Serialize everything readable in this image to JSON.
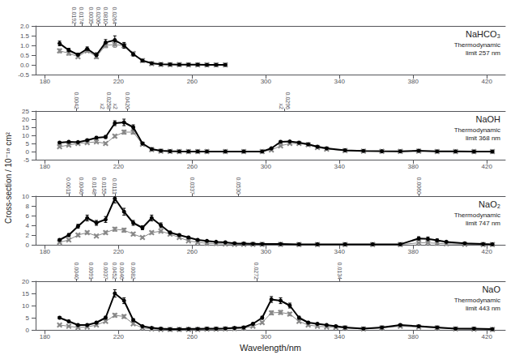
{
  "chart_data": [
    {
      "type": "line",
      "title": "NaHCO₃",
      "annotations": [
        "Thermodynamic\nlimit 257 nm"
      ],
      "ylabel": "Cross-section / 10⁻¹⁸ cm²",
      "x": [
        188,
        193,
        198,
        203,
        208,
        213,
        218,
        223,
        228,
        233,
        238,
        243,
        248,
        253,
        258,
        263,
        268,
        273,
        278
      ],
      "xlim": [
        175,
        430
      ],
      "xticks": [
        180,
        220,
        260,
        300,
        340,
        380,
        420
      ],
      "x2lim": [
        175,
        430
      ],
      "x2ticks": [
        {
          "value": 196,
          "label": "0.0192"
        },
        {
          "value": 200,
          "label": "0.0174"
        },
        {
          "value": 205,
          "label": "0.0035"
        },
        {
          "value": 209,
          "label": "0.0206"
        },
        {
          "value": 213,
          "label": "0.0810"
        },
        {
          "value": 218,
          "label": "0.0264"
        }
      ],
      "ylim": [
        -0.5,
        2.0
      ],
      "yticks": [
        -0.5,
        {
          "value": 0,
          "label": "0.0"
        },
        0.5,
        {
          "value": 1.0,
          "label": "1.0"
        },
        1.5,
        {
          "value": 2.0,
          "label": "2.0"
        }
      ],
      "grid": false,
      "series": [
        {
          "color": "#888888",
          "marker": "x",
          "line_style": "solid",
          "values": [
            0.72,
            0.6,
            0.42,
            0.72,
            0.42,
            1.0,
            1.05,
            0.98,
            0.58,
            0.22,
            0.06,
            0.02,
            0.01,
            0.01,
            0.0,
            0.0,
            0.0,
            0.0,
            0.0
          ],
          "errors": [
            0.1,
            0.1,
            0.07,
            0.08,
            0.1,
            0.12,
            0.15,
            0.12,
            0.08,
            0.04,
            0.02,
            0.01,
            0.01,
            0.01,
            0.01,
            0.01,
            0.01,
            0.01,
            0.01
          ]
        },
        {
          "color": "black",
          "marker": "circle",
          "line_style": "solid",
          "values": [
            1.1,
            0.75,
            0.52,
            0.82,
            0.5,
            1.15,
            1.27,
            1.0,
            0.55,
            0.22,
            0.08,
            0.03,
            0.02,
            0.01,
            0.01,
            0.01,
            0.0,
            0.0,
            0.0
          ],
          "errors": [
            0.12,
            0.1,
            0.08,
            0.1,
            0.12,
            0.15,
            0.22,
            0.15,
            0.1,
            0.05,
            0.03,
            0.02,
            0.01,
            0.01,
            0.01,
            0.01,
            0.01,
            0.01,
            0.01
          ]
        }
      ]
    },
    {
      "type": "line",
      "title": "NaOH",
      "annotations": [
        "Thermodynamic\nlimit 368 nm"
      ],
      "x": [
        188,
        193,
        198,
        203,
        208,
        213,
        218,
        223,
        228,
        233,
        238,
        243,
        248,
        253,
        258,
        263,
        268,
        278,
        288,
        298,
        303,
        308,
        313,
        318,
        323,
        328,
        333,
        343,
        353,
        363,
        373,
        383,
        393,
        403,
        413,
        423
      ],
      "xlim": [
        175,
        430
      ],
      "xticks": [
        180,
        220,
        260,
        300,
        340,
        380,
        420
      ],
      "x2lim": [
        175,
        430
      ],
      "x2ticks": [
        {
          "value": 197,
          "label": "0.0042"
        },
        {
          "value": 215,
          "label": "x2\n0.0258\nx2"
        },
        {
          "value": 225,
          "label": "0.0420"
        },
        {
          "value": 310,
          "label": "0.0296\nx2"
        }
      ],
      "ylim": [
        -5,
        25
      ],
      "yticks": [
        -5,
        0,
        5,
        10,
        15,
        20,
        25
      ],
      "grid": false,
      "series": [
        {
          "color": "#888888",
          "marker": "x",
          "line_style": "solid",
          "values": [
            3.0,
            4.0,
            5.0,
            5.5,
            6.0,
            5.0,
            9.5,
            12.0,
            12.0,
            4.5,
            1.2,
            0.3,
            0.1,
            0.05,
            0.05,
            0.05,
            0.05,
            0.05,
            0.05,
            0.05,
            1.0,
            3.5,
            5.0,
            5.0,
            4.2,
            2.5,
            1.5,
            0.6,
            0.3,
            0.15,
            0.1,
            0.3,
            0.05,
            0.05,
            0.0,
            0.0
          ],
          "errors": [
            0.4,
            0.4,
            0.5,
            0.5,
            0.6,
            0.6,
            0.9,
            1.2,
            1.2,
            0.5,
            0.2,
            0.1,
            0.05,
            0.05,
            0.05,
            0.05,
            0.05,
            0.05,
            0.05,
            0.05,
            0.2,
            0.4,
            0.5,
            0.5,
            0.4,
            0.3,
            0.2,
            0.1,
            0.1,
            0.1,
            0.1,
            0.1,
            0.05,
            0.05,
            0.05,
            0.05
          ]
        },
        {
          "color": "black",
          "marker": "circle",
          "line_style": "solid",
          "values": [
            5.5,
            6.0,
            5.8,
            7.0,
            8.5,
            9.0,
            17.5,
            18.0,
            15.0,
            5.0,
            1.5,
            0.5,
            0.2,
            0.1,
            0.05,
            0.05,
            0.05,
            0.05,
            0.05,
            0.05,
            2.0,
            6.0,
            6.2,
            5.5,
            4.5,
            3.0,
            2.0,
            0.8,
            0.4,
            0.2,
            0.15,
            0.5,
            0.1,
            0.1,
            0.0,
            0.0
          ],
          "errors": [
            0.5,
            0.5,
            0.5,
            0.6,
            0.8,
            0.9,
            1.5,
            2.0,
            1.5,
            0.8,
            0.3,
            0.1,
            0.05,
            0.05,
            0.05,
            0.05,
            0.05,
            0.05,
            0.05,
            0.05,
            0.3,
            0.6,
            0.6,
            0.5,
            0.5,
            0.4,
            0.2,
            0.1,
            0.1,
            0.1,
            0.1,
            0.1,
            0.1,
            0.1,
            0.05,
            0.05
          ]
        }
      ]
    },
    {
      "type": "line",
      "title": "NaO₂",
      "annotations": [
        "Thermodynamic\nlimit 747 nm"
      ],
      "x": [
        188,
        193,
        198,
        203,
        208,
        213,
        218,
        223,
        228,
        233,
        238,
        243,
        248,
        253,
        258,
        263,
        268,
        273,
        278,
        283,
        288,
        293,
        298,
        308,
        318,
        328,
        343,
        358,
        373,
        383,
        388,
        393,
        398,
        408,
        418,
        423
      ],
      "xlim": [
        175,
        430
      ],
      "xticks": [
        180,
        220,
        260,
        300,
        340,
        380,
        420
      ],
      "x2lim": [
        175,
        430
      ],
      "x2ticks": [
        {
          "value": 193,
          "label": "0.0011"
        },
        {
          "value": 200,
          "label": "0.0046"
        },
        {
          "value": 207,
          "label": "0.0148"
        },
        {
          "value": 212,
          "label": "0.0155"
        },
        {
          "value": 218,
          "label": "0.0111"
        },
        {
          "value": 260,
          "label": "0.0337"
        },
        {
          "value": 285,
          "label": "0.0530"
        },
        {
          "value": 383,
          "label": "0.0060"
        }
      ],
      "ylim": [
        0,
        10
      ],
      "yticks": [
        0,
        2,
        4,
        6,
        8,
        10
      ],
      "grid": false,
      "series": [
        {
          "color": "#888888",
          "marker": "x",
          "line_style": "solid",
          "values": [
            0.5,
            1.0,
            2.0,
            2.5,
            1.8,
            2.5,
            3.2,
            3.0,
            2.2,
            1.5,
            2.5,
            2.8,
            2.2,
            1.5,
            0.8,
            0.5,
            0.3,
            0.25,
            0.15,
            0.1,
            0.1,
            0.08,
            0.08,
            0.08,
            0.05,
            0.05,
            0.05,
            0.05,
            0.05,
            0.4,
            0.4,
            0.3,
            0.2,
            0.1,
            0.05,
            0.05
          ],
          "errors": [
            0.1,
            0.2,
            0.3,
            0.3,
            0.2,
            0.3,
            0.4,
            0.4,
            0.3,
            0.2,
            0.3,
            0.3,
            0.3,
            0.2,
            0.1,
            0.1,
            0.05,
            0.05,
            0.05,
            0.05,
            0.05,
            0.05,
            0.05,
            0.05,
            0.05,
            0.05,
            0.05,
            0.05,
            0.05,
            0.1,
            0.1,
            0.1,
            0.1,
            0.05,
            0.05,
            0.05
          ]
        },
        {
          "color": "black",
          "marker": "circle",
          "line_style": "solid",
          "values": [
            1.0,
            2.0,
            3.8,
            5.5,
            4.5,
            5.2,
            9.5,
            6.8,
            4.5,
            3.5,
            5.5,
            4.0,
            2.5,
            2.0,
            1.5,
            1.0,
            0.8,
            0.6,
            0.5,
            0.3,
            0.25,
            0.2,
            0.15,
            0.15,
            0.1,
            0.1,
            0.1,
            0.1,
            0.1,
            1.3,
            1.2,
            0.9,
            0.6,
            0.3,
            0.15,
            0.1
          ],
          "errors": [
            0.2,
            0.3,
            0.4,
            0.6,
            0.5,
            0.6,
            0.9,
            0.7,
            0.5,
            0.4,
            0.6,
            0.5,
            0.3,
            0.2,
            0.2,
            0.15,
            0.1,
            0.1,
            0.1,
            0.1,
            0.05,
            0.05,
            0.05,
            0.05,
            0.05,
            0.05,
            0.05,
            0.05,
            0.05,
            0.35,
            0.4,
            0.3,
            0.2,
            0.1,
            0.1,
            0.05
          ]
        }
      ]
    },
    {
      "type": "line",
      "title": "NaO",
      "annotations": [
        "Thermodynamic\nlimit 443 nm"
      ],
      "xlabel": "Wavelength/nm",
      "x": [
        188,
        193,
        198,
        203,
        208,
        213,
        218,
        223,
        228,
        233,
        238,
        243,
        248,
        253,
        258,
        263,
        268,
        273,
        278,
        283,
        288,
        293,
        298,
        303,
        308,
        313,
        318,
        323,
        328,
        333,
        338,
        343,
        353,
        363,
        373,
        383,
        393,
        403,
        413,
        423
      ],
      "xlim": [
        175,
        430
      ],
      "xticks": [
        180,
        220,
        260,
        300,
        340,
        380,
        420
      ],
      "x2lim": [
        175,
        430
      ],
      "x2ticks": [
        {
          "value": 197,
          "label": "0.0040"
        },
        {
          "value": 205,
          "label": "0.0091"
        },
        {
          "value": 213,
          "label": "0.0037"
        },
        {
          "value": 218,
          "label": "0.0452"
        },
        {
          "value": 222,
          "label": "0.0046"
        },
        {
          "value": 228,
          "label": "0.0082"
        },
        {
          "value": 295,
          "label": "0.0272"
        },
        {
          "value": 340,
          "label": "0.0134"
        }
      ],
      "ylim": [
        0,
        20
      ],
      "yticks": [
        0,
        5,
        10,
        15,
        20
      ],
      "grid": false,
      "series": [
        {
          "color": "#888888",
          "marker": "x",
          "line_style": "solid",
          "values": [
            2.0,
            1.5,
            1.0,
            1.2,
            2.0,
            3.5,
            6.0,
            5.5,
            2.5,
            0.8,
            0.4,
            0.2,
            0.2,
            0.2,
            0.2,
            0.2,
            0.3,
            0.3,
            0.4,
            0.5,
            0.7,
            1.5,
            3.0,
            7.0,
            7.2,
            6.5,
            3.5,
            2.0,
            1.5,
            1.2,
            1.0,
            0.8,
            0.4,
            0.8,
            1.5,
            1.2,
            0.8,
            0.4,
            0.3,
            0.2
          ],
          "errors": [
            0.3,
            0.2,
            0.2,
            0.2,
            0.3,
            0.4,
            0.7,
            0.7,
            0.4,
            0.2,
            0.1,
            0.1,
            0.1,
            0.1,
            0.1,
            0.1,
            0.1,
            0.1,
            0.1,
            0.1,
            0.1,
            0.2,
            0.4,
            0.8,
            0.8,
            0.7,
            0.4,
            0.3,
            0.2,
            0.2,
            0.2,
            0.1,
            0.1,
            0.2,
            0.3,
            0.2,
            0.2,
            0.1,
            0.1,
            0.1
          ]
        },
        {
          "color": "black",
          "marker": "circle",
          "line_style": "solid",
          "values": [
            5.0,
            3.5,
            2.0,
            2.0,
            3.0,
            5.0,
            15.0,
            12.0,
            4.0,
            1.5,
            0.8,
            0.5,
            0.3,
            0.3,
            0.4,
            0.4,
            0.5,
            0.5,
            0.6,
            0.8,
            1.0,
            2.5,
            5.0,
            12.5,
            12.0,
            10.0,
            5.0,
            3.0,
            2.5,
            2.0,
            1.5,
            1.0,
            0.5,
            1.0,
            2.0,
            1.5,
            1.0,
            0.5,
            0.5,
            0.3
          ],
          "errors": [
            0.5,
            0.4,
            0.3,
            0.3,
            0.4,
            0.6,
            1.5,
            1.2,
            0.6,
            0.3,
            0.1,
            0.1,
            0.1,
            0.1,
            0.1,
            0.1,
            0.1,
            0.1,
            0.1,
            0.1,
            0.2,
            0.4,
            0.6,
            1.2,
            1.2,
            1.0,
            0.6,
            0.4,
            0.3,
            0.2,
            0.2,
            0.2,
            0.1,
            0.2,
            0.3,
            0.3,
            0.2,
            0.1,
            0.1,
            0.1
          ]
        }
      ]
    }
  ]
}
